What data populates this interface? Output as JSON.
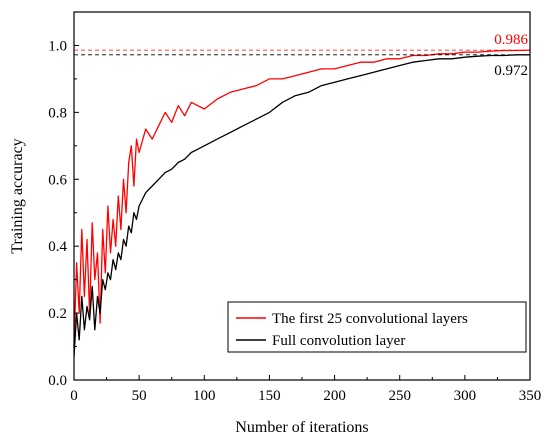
{
  "chart_data": {
    "type": "line",
    "xlabel": "Number of iterations",
    "ylabel": "Training accuracy",
    "xlim": [
      0,
      350
    ],
    "ylim": [
      0.0,
      1.1
    ],
    "x_ticks": [
      0,
      50,
      100,
      150,
      200,
      250,
      300,
      350
    ],
    "y_ticks": [
      0.0,
      0.2,
      0.4,
      0.6,
      0.8,
      1.0
    ],
    "x_tick_labels": [
      "0",
      "50",
      "100",
      "150",
      "200",
      "250",
      "300",
      "350"
    ],
    "y_tick_labels": [
      "0.0",
      "0.2",
      "0.4",
      "0.6",
      "0.8",
      "1.0"
    ],
    "grid": false,
    "legend_position": "bottom-right",
    "series": [
      {
        "name": "The first 25 convolutional layers",
        "color": "#ff0000",
        "x": [
          0,
          2,
          4,
          6,
          8,
          10,
          12,
          14,
          16,
          18,
          20,
          22,
          24,
          26,
          28,
          30,
          32,
          34,
          36,
          38,
          40,
          42,
          44,
          46,
          48,
          50,
          55,
          60,
          65,
          70,
          75,
          80,
          85,
          90,
          95,
          100,
          110,
          120,
          130,
          140,
          150,
          160,
          170,
          180,
          190,
          200,
          210,
          220,
          230,
          240,
          250,
          260,
          270,
          280,
          290,
          300,
          310,
          320,
          330,
          340,
          350
        ],
        "y": [
          0.1,
          0.35,
          0.2,
          0.45,
          0.25,
          0.42,
          0.2,
          0.47,
          0.3,
          0.38,
          0.17,
          0.45,
          0.32,
          0.52,
          0.38,
          0.48,
          0.4,
          0.55,
          0.45,
          0.6,
          0.5,
          0.65,
          0.7,
          0.58,
          0.72,
          0.68,
          0.75,
          0.72,
          0.76,
          0.8,
          0.77,
          0.82,
          0.79,
          0.83,
          0.82,
          0.81,
          0.84,
          0.86,
          0.87,
          0.88,
          0.9,
          0.9,
          0.91,
          0.92,
          0.93,
          0.93,
          0.94,
          0.95,
          0.95,
          0.96,
          0.96,
          0.97,
          0.97,
          0.975,
          0.975,
          0.98,
          0.98,
          0.983,
          0.985,
          0.985,
          0.986
        ]
      },
      {
        "name": "Full convolution layer",
        "color": "#000000",
        "x": [
          0,
          2,
          4,
          6,
          8,
          10,
          12,
          14,
          16,
          18,
          20,
          22,
          24,
          26,
          28,
          30,
          32,
          34,
          36,
          38,
          40,
          42,
          44,
          46,
          48,
          50,
          55,
          60,
          65,
          70,
          75,
          80,
          85,
          90,
          95,
          100,
          110,
          120,
          130,
          140,
          150,
          160,
          170,
          180,
          190,
          200,
          210,
          220,
          230,
          240,
          250,
          260,
          270,
          280,
          290,
          300,
          310,
          320,
          330,
          340,
          350
        ],
        "y": [
          0.07,
          0.2,
          0.12,
          0.25,
          0.15,
          0.22,
          0.18,
          0.28,
          0.15,
          0.25,
          0.2,
          0.3,
          0.27,
          0.32,
          0.3,
          0.36,
          0.33,
          0.38,
          0.36,
          0.42,
          0.4,
          0.46,
          0.44,
          0.5,
          0.48,
          0.52,
          0.56,
          0.58,
          0.6,
          0.62,
          0.63,
          0.65,
          0.66,
          0.68,
          0.69,
          0.7,
          0.72,
          0.74,
          0.76,
          0.78,
          0.8,
          0.83,
          0.85,
          0.86,
          0.88,
          0.89,
          0.9,
          0.91,
          0.92,
          0.93,
          0.94,
          0.95,
          0.955,
          0.96,
          0.96,
          0.965,
          0.968,
          0.97,
          0.97,
          0.972,
          0.972
        ]
      }
    ],
    "reference_lines": [
      {
        "y": 0.986,
        "color": "#ff0000",
        "label": "0.986"
      },
      {
        "y": 0.972,
        "color": "#000000",
        "label": "0.972"
      }
    ]
  }
}
